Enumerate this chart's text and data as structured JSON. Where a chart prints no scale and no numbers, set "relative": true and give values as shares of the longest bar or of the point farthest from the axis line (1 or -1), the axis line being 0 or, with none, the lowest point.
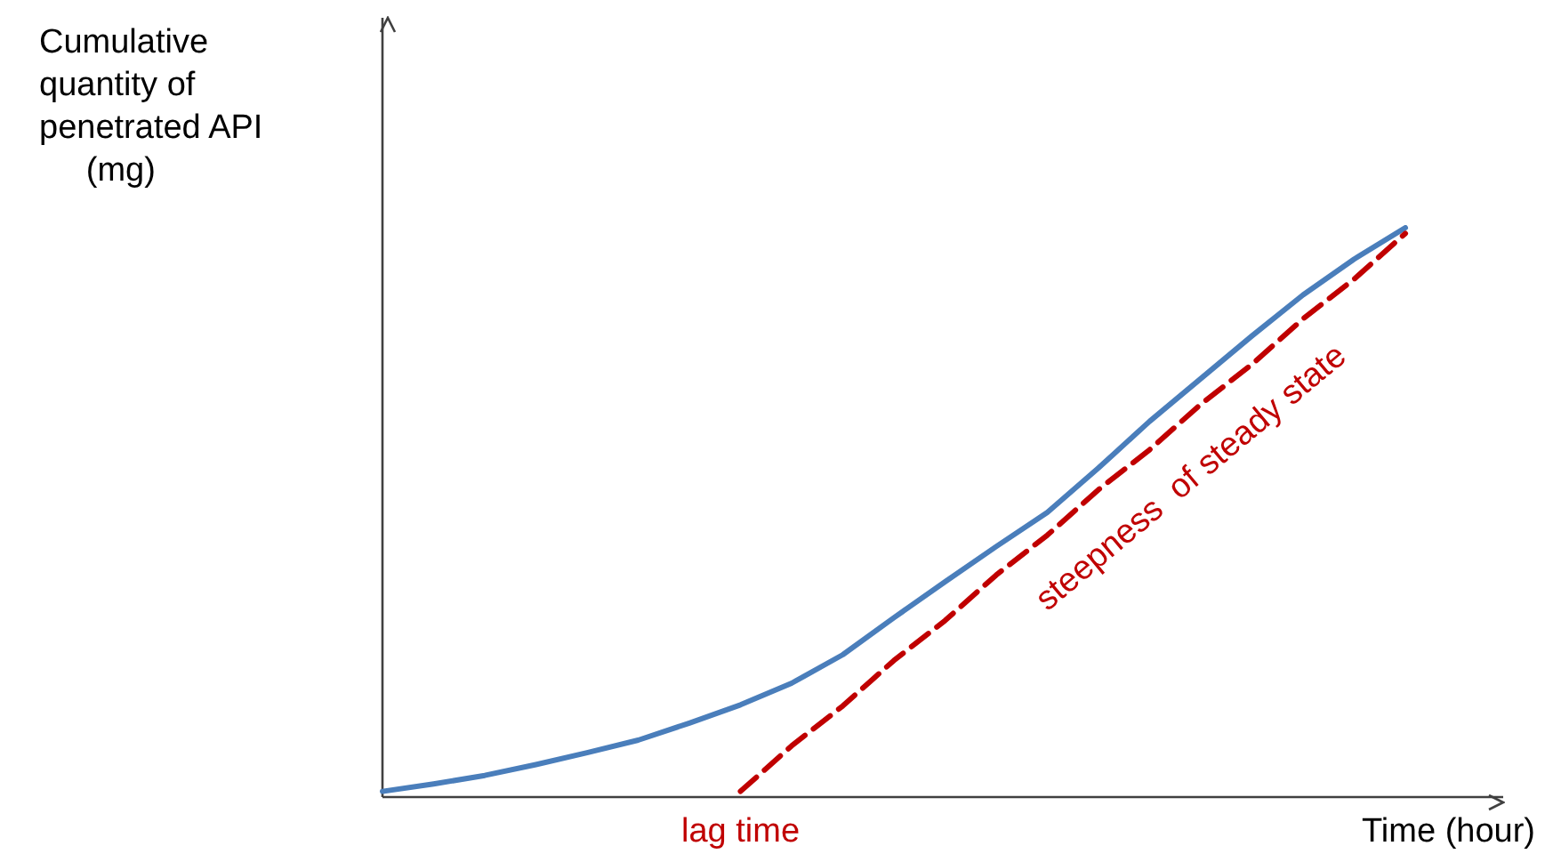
{
  "chart_data": {
    "type": "line",
    "relative": true,
    "xlabel": "Time (hour)",
    "ylabel": "Cumulative\nquantity of\npenetrated API\n     (mg)",
    "marker": "none",
    "categories": [
      null,
      null,
      null,
      null,
      null,
      null,
      null,
      null,
      null,
      null,
      null,
      null,
      null,
      null,
      null,
      null,
      null,
      null,
      null,
      null,
      null
    ],
    "series": [
      {
        "color": "#4a7ebb",
        "line_style": "solid",
        "values": [
          0.01,
          0.023,
          0.038,
          0.057,
          0.078,
          0.1,
          0.13,
          0.162,
          0.2,
          0.25,
          0.315,
          0.378,
          0.44,
          0.5,
          0.578,
          0.66,
          0.735,
          0.81,
          0.882,
          0.945,
          1
        ]
      },
      {
        "color": "#c00000",
        "line_style": "dashed",
        "values": [
          null,
          null,
          null,
          null,
          null,
          null,
          null,
          0.01,
          0.09,
          0.16,
          0.24,
          0.31,
          0.39,
          0.46,
          0.54,
          0.61,
          0.69,
          0.76,
          0.84,
          0.91,
          0.99
        ]
      }
    ],
    "annotations": [
      "lag time",
      "steepness  of steady state"
    ]
  }
}
